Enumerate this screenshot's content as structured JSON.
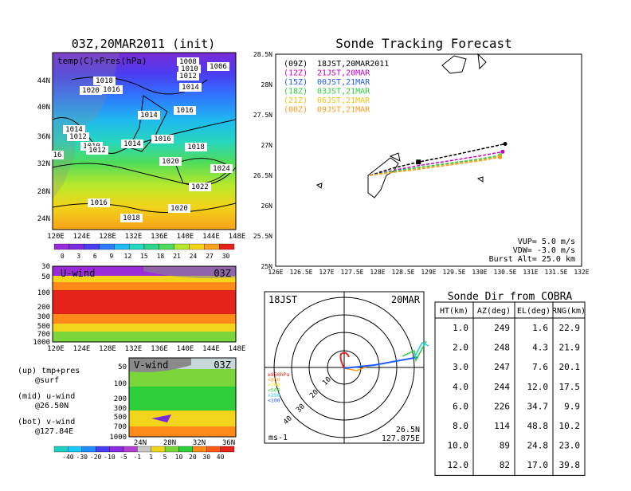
{
  "colors": {
    "purple": "#8a2be2",
    "blue": "#1f5bff",
    "cyan": "#19c8ff",
    "teal": "#2fd6b4",
    "green": "#2ccf3a",
    "yellow": "#f2e61a",
    "orange": "#ff9a1a",
    "red": "#e5231b",
    "magenta": "#c400c4"
  },
  "temp_panel": {
    "title": "03Z,20MAR2011 (init)",
    "label": "temp(C)+Pres(hPa)",
    "lat_ticks": [
      "44N",
      "40N",
      "36N",
      "32N",
      "28N",
      "24N"
    ],
    "lon_ticks": [
      "120E",
      "124E",
      "128E",
      "132E",
      "136E",
      "140E",
      "144E",
      "148E"
    ],
    "pressure_labels": [
      "1008",
      "1006",
      "1010",
      "1012",
      "1018",
      "1020",
      "1016",
      "1014",
      "1014",
      "1016",
      "1014",
      "1012",
      "1010",
      "1012",
      "1014",
      "1016",
      "1018",
      "1020",
      "1024",
      "1022",
      "1016",
      "1018",
      "1020",
      "16"
    ],
    "colorbar_ticks": [
      "0",
      "3",
      "6",
      "9",
      "12",
      "15",
      "18",
      "21",
      "24",
      "27",
      "30"
    ]
  },
  "uwind_panel": {
    "title": "U-wind",
    "time": "03Z",
    "levels": [
      "30",
      "50",
      "100",
      "200",
      "300",
      "500",
      "700",
      "1000"
    ],
    "lon_ticks": [
      "120E",
      "124E",
      "128E",
      "132E",
      "136E",
      "140E",
      "144E",
      "148E"
    ]
  },
  "vwind_panel": {
    "title": "V-wind",
    "time": "03Z",
    "levels": [
      "50",
      "100",
      "200",
      "300",
      "500",
      "700",
      "1000"
    ],
    "lat_ticks": [
      "24N",
      "28N",
      "32N",
      "36N"
    ]
  },
  "notes": {
    "up": "(up) tmp+pres",
    "up2": "@surf",
    "mid": "(mid) u-wind",
    "mid2": "@26.50N",
    "bot": "(bot) v-wind",
    "bot2": "@127.84E"
  },
  "wind_colorbar_ticks": [
    "-40",
    "-30",
    "-20",
    "-10",
    "-5",
    "-1",
    "1",
    "5",
    "10",
    "20",
    "30",
    "40"
  ],
  "tracking": {
    "title": "Sonde Tracking Forecast",
    "legend": [
      {
        "code": "(09Z)",
        "text": "18JST,20MAR2011",
        "color": "#000000"
      },
      {
        "code": "(12Z)",
        "text": "21JST,20MAR",
        "color": "#c400c4"
      },
      {
        "code": "(15Z)",
        "text": "00JST,21MAR",
        "color": "#1f5bff"
      },
      {
        "code": "(18Z)",
        "text": "03JST,21MAR",
        "color": "#2ccf3a"
      },
      {
        "code": "(21Z)",
        "text": "06JST,21MAR",
        "color": "#f2c21a"
      },
      {
        "code": "(00Z)",
        "text": "09JST,21MAR",
        "color": "#ff9a1a"
      }
    ],
    "info": [
      "VUP= 5.0 m/s",
      "VDW= -3.0 m/s",
      "Burst Alt= 25.0 km"
    ],
    "lat_ticks": [
      "28.5N",
      "28N",
      "27.5N",
      "27N",
      "26.5N",
      "26N",
      "25.5N",
      "25N"
    ],
    "lon_ticks": [
      "126E",
      "126.5E",
      "127E",
      "127.5E",
      "128E",
      "128.5E",
      "129E",
      "129.5E",
      "130E",
      "130.5E",
      "131E",
      "131.5E",
      "132E"
    ]
  },
  "chart_data": {
    "type": "line",
    "title": "Sonde Tracking Forecast",
    "xlim": [
      126,
      132
    ],
    "ylim": [
      25,
      28.5
    ],
    "series": [
      {
        "name": "(09Z) 18JST,20MAR2011",
        "x": [
          127.85,
          128.3,
          128.8,
          129.4,
          130.0,
          130.5
        ],
        "y": [
          26.5,
          26.62,
          26.72,
          26.82,
          26.93,
          27.02
        ]
      },
      {
        "name": "(12Z) 21JST,20MAR",
        "x": [
          127.85,
          128.3,
          128.8,
          129.4,
          130.0,
          130.45
        ],
        "y": [
          26.5,
          26.58,
          26.66,
          26.74,
          26.82,
          26.89
        ]
      },
      {
        "name": "(15Z) 00JST,21MAR",
        "x": [
          127.85,
          128.3,
          128.8,
          129.4,
          130.0,
          130.4
        ],
        "y": [
          26.5,
          26.56,
          26.62,
          26.69,
          26.76,
          26.82
        ]
      },
      {
        "name": "(18Z) 03JST,21MAR",
        "x": [
          127.85,
          128.3,
          128.8,
          129.4,
          130.0,
          130.4
        ],
        "y": [
          26.5,
          26.57,
          26.63,
          26.7,
          26.77,
          26.83
        ]
      },
      {
        "name": "(21Z) 06JST,21MAR",
        "x": [
          127.85,
          128.3,
          128.8,
          129.4,
          130.0,
          130.4
        ],
        "y": [
          26.5,
          26.55,
          26.61,
          26.68,
          26.75,
          26.81
        ]
      },
      {
        "name": "(00Z) 09JST,21MAR",
        "x": [
          127.85,
          128.3,
          128.8,
          129.4,
          130.0,
          130.4
        ],
        "y": [
          26.5,
          26.55,
          26.6,
          26.67,
          26.74,
          26.8
        ]
      }
    ]
  },
  "polar": {
    "time": "18JST",
    "date": "20MAR",
    "ring_labels": [
      "10",
      "20",
      "30",
      "40"
    ],
    "legend": [
      "≥850hPa",
      "<850",
      "<700",
      "<500",
      "<250",
      "<100"
    ],
    "units": "ms-1",
    "loc1": "26.5N",
    "loc2": "127.875E"
  },
  "sonde_table": {
    "title": "Sonde Dir from COBRA",
    "headers": [
      "HT(km)",
      "AZ(deg)",
      "EL(deg)",
      "RNG(km)"
    ],
    "rows": [
      [
        "1.0",
        "249",
        "1.6",
        "22.9"
      ],
      [
        "2.0",
        "248",
        "4.3",
        "21.9"
      ],
      [
        "3.0",
        "247",
        "7.6",
        "20.1"
      ],
      [
        "4.0",
        "244",
        "12.0",
        "17.5"
      ],
      [
        "6.0",
        "226",
        "34.7",
        "9.9"
      ],
      [
        "8.0",
        "114",
        "48.8",
        "10.2"
      ],
      [
        "10.0",
        "89",
        "24.8",
        "23.0"
      ],
      [
        "12.0",
        "82",
        "17.0",
        "39.8"
      ]
    ]
  }
}
